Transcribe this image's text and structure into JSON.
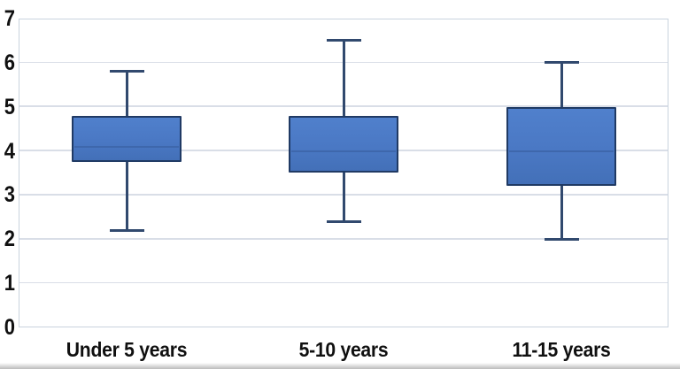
{
  "chart_data": {
    "type": "box",
    "title": "",
    "xlabel": "",
    "ylabel": "",
    "categories": [
      "Under 5 years",
      "5-10 years",
      "11-15 years"
    ],
    "series": [
      {
        "name": "Under 5 years",
        "whisker_low": 2.2,
        "q1": 3.75,
        "median": 4.1,
        "q3": 4.8,
        "whisker_high": 5.8
      },
      {
        "name": "5-10 years",
        "whisker_low": 2.4,
        "q1": 3.5,
        "median": 4.0,
        "q3": 4.8,
        "whisker_high": 6.5
      },
      {
        "name": "11-15 years",
        "whisker_low": 2.0,
        "q1": 3.2,
        "median": 4.0,
        "q3": 5.0,
        "whisker_high": 6.0
      }
    ],
    "ylim": [
      0,
      7
    ],
    "yticks": [
      0,
      1,
      2,
      3,
      4,
      5,
      6,
      7
    ],
    "ytick_labels": [
      "0",
      "1",
      "2",
      "3",
      "4",
      "5",
      "6",
      "7"
    ],
    "grid": true,
    "legend": false,
    "colors": {
      "box_fill": "#4a78c4",
      "box_border": "#203a64",
      "whisker": "#31496e",
      "median": "#3e67ac",
      "gridline": "#d9dee7",
      "plot_border": "#c9d3de",
      "label": "#101010"
    }
  }
}
